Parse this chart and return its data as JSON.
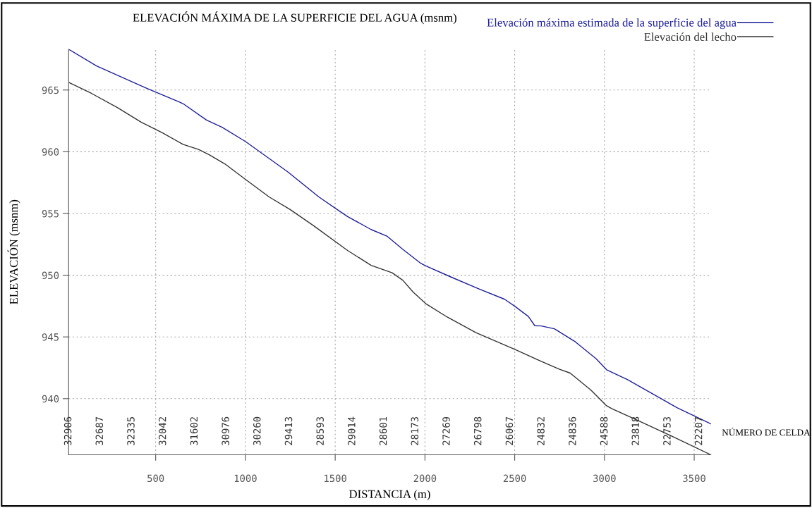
{
  "chart_data": {
    "type": "line",
    "title": "ELEVACIÓN MÁXIMA DE LA SUPERFICIE DEL AGUA (msnm)",
    "xlabel": "DISTANCIA (m)",
    "ylabel": "ELEVACIÓN (msnm)",
    "xlim": [
      15,
      3593
    ],
    "xticks": [
      500,
      1000,
      1500,
      2000,
      2500,
      3000,
      3500
    ],
    "ylim": [
      935.45,
      968.3
    ],
    "yticks": [
      940,
      945,
      950,
      955,
      960,
      965
    ],
    "grid": true,
    "legend": "top right",
    "line_style": "solid",
    "marker": "none",
    "series": [
      {
        "name": "Elevación máxima estimada de la superficie del agua",
        "color": "#1f1f9a",
        "x": [
          15,
          171,
          448,
          652,
          783,
          870,
          1001,
          1235,
          1409,
          1511,
          1569,
          1700,
          1788,
          1876,
          1978,
          2007,
          2139,
          2299,
          2444,
          2503,
          2576,
          2612,
          2648,
          2721,
          2838,
          2954,
          3012,
          3129,
          3406,
          3593
        ],
        "values": [
          968.3,
          966.95,
          965.15,
          963.9,
          962.57,
          961.98,
          960.82,
          958.38,
          956.34,
          955.32,
          954.75,
          953.7,
          953.17,
          952.1,
          950.95,
          950.74,
          949.89,
          948.9,
          948.05,
          947.46,
          946.66,
          945.91,
          945.89,
          945.66,
          944.6,
          943.23,
          942.34,
          941.54,
          939.25,
          937.95
        ]
      },
      {
        "name": "Elevación del lecho",
        "color": "#333333",
        "x": [
          15,
          142,
          288,
          419,
          535,
          652,
          739,
          798,
          885,
          1001,
          1132,
          1249,
          1380,
          1569,
          1700,
          1817,
          1876,
          1935,
          2007,
          2124,
          2284,
          2503,
          2648,
          2750,
          2809,
          2925,
          3012,
          3042,
          3187,
          3376,
          3593
        ],
        "values": [
          965.62,
          964.73,
          963.57,
          962.4,
          961.55,
          960.6,
          960.18,
          959.76,
          959.02,
          957.75,
          956.34,
          955.32,
          954.01,
          952.0,
          950.8,
          950.2,
          949.6,
          948.62,
          947.67,
          946.61,
          945.34,
          943.97,
          943.02,
          942.38,
          942.07,
          940.69,
          939.42,
          939.18,
          938.22,
          936.95,
          935.45
        ]
      }
    ],
    "annotations": [
      "32906",
      "32687",
      "32335",
      "32042",
      "31602",
      "30976",
      "30260",
      "29413",
      "28593",
      "29014",
      "28601",
      "28173",
      "27269",
      "26798",
      "26067",
      "24832",
      "24836",
      "24588",
      "23818",
      "22753",
      "22207",
      "NÚMERO DE CELDA"
    ]
  }
}
